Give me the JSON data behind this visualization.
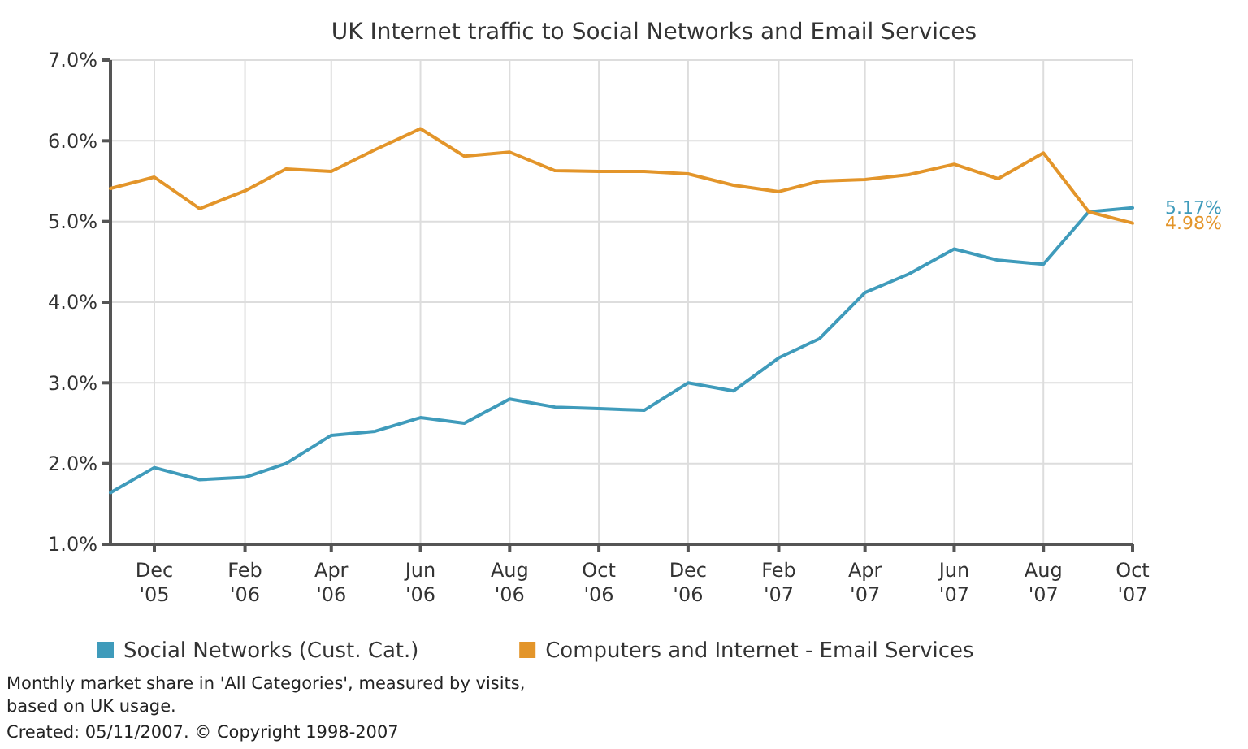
{
  "chart_data": {
    "type": "line",
    "title": "UK Internet traffic to Social Networks and Email Services",
    "x": [
      "2005-11",
      "2005-12",
      "2006-01",
      "2006-02",
      "2006-03",
      "2006-04",
      "2006-05",
      "2006-06",
      "2006-07",
      "2006-08",
      "2006-09",
      "2006-10",
      "2006-11",
      "2006-12",
      "2007-01",
      "2007-02",
      "2007-03",
      "2007-04",
      "2007-05",
      "2007-06",
      "2007-07",
      "2007-08",
      "2007-09",
      "2007-10"
    ],
    "series": [
      {
        "name": "Social Networks (Cust. Cat.)",
        "color": "#3f9bbb",
        "values": [
          1.64,
          1.95,
          1.8,
          1.83,
          2.0,
          2.35,
          2.4,
          2.57,
          2.5,
          2.8,
          2.7,
          2.68,
          2.66,
          3.0,
          2.9,
          3.31,
          3.55,
          4.12,
          4.35,
          4.66,
          4.52,
          4.47,
          5.12,
          5.17
        ]
      },
      {
        "name": "Computers and Internet - Email Services",
        "color": "#e3952a",
        "values": [
          5.41,
          5.55,
          5.16,
          5.38,
          5.65,
          5.62,
          5.89,
          6.15,
          5.81,
          5.86,
          5.63,
          5.62,
          5.62,
          5.59,
          5.45,
          5.37,
          5.5,
          5.52,
          5.58,
          5.71,
          5.53,
          5.85,
          5.12,
          4.98
        ]
      }
    ],
    "xlim": [
      "2005-11",
      "2007-10"
    ],
    "xticks": [
      {
        "value": "2005-12",
        "label": "Dec '05"
      },
      {
        "value": "2006-02",
        "label": "Feb '06"
      },
      {
        "value": "2006-04",
        "label": "Apr '06"
      },
      {
        "value": "2006-06",
        "label": "Jun '06"
      },
      {
        "value": "2006-08",
        "label": "Aug '06"
      },
      {
        "value": "2006-10",
        "label": "Oct '06"
      },
      {
        "value": "2006-12",
        "label": "Dec '06"
      },
      {
        "value": "2007-02",
        "label": "Feb '07"
      },
      {
        "value": "2007-04",
        "label": "Apr '07"
      },
      {
        "value": "2007-06",
        "label": "Jun '07"
      },
      {
        "value": "2007-08",
        "label": "Aug '07"
      },
      {
        "value": "2007-10",
        "label": "Oct '07"
      }
    ],
    "ylim": [
      1,
      7
    ],
    "yticks": [
      {
        "value": 1,
        "label": "1.0%"
      },
      {
        "value": 2,
        "label": "2.0%"
      },
      {
        "value": 3,
        "label": "3.0%"
      },
      {
        "value": 4,
        "label": "4.0%"
      },
      {
        "value": 5,
        "label": "5.0%"
      },
      {
        "value": 6,
        "label": "6.0%"
      },
      {
        "value": 7,
        "label": "7.0%"
      }
    ],
    "grid": true,
    "legend": "bottom",
    "marker": "none",
    "line_style": "solid",
    "annotations": [
      {
        "text": "5.17%",
        "x": "2007-10",
        "y": 5.17
      },
      {
        "text": "4.98%",
        "x": "2007-10",
        "y": 4.98
      },
      "Monthly market share in 'All Categories', measured by visits, based on UK usage.",
      "Created: 05/11/2007. © Copyright 1998-2007"
    ]
  }
}
